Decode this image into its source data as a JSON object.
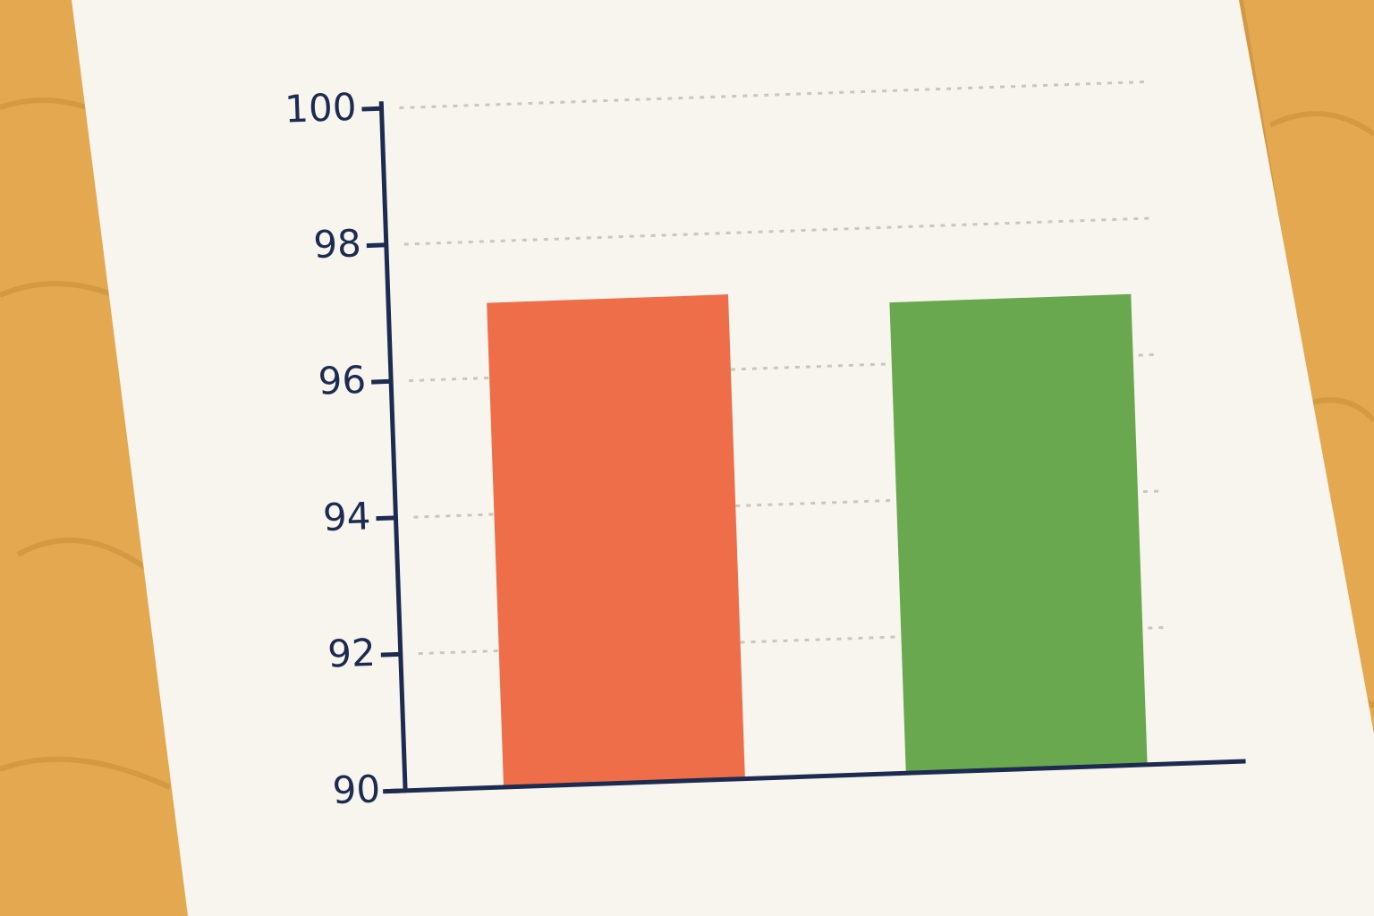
{
  "chart_data": {
    "type": "bar",
    "categories": [
      null,
      null
    ],
    "values": [
      97.1,
      96.9
    ],
    "colors": [
      "#ef6e4a",
      "#6aa84f"
    ],
    "ylim": [
      90,
      100
    ],
    "yticks": [
      90,
      92,
      94,
      96,
      98,
      100
    ],
    "grid": true
  }
}
